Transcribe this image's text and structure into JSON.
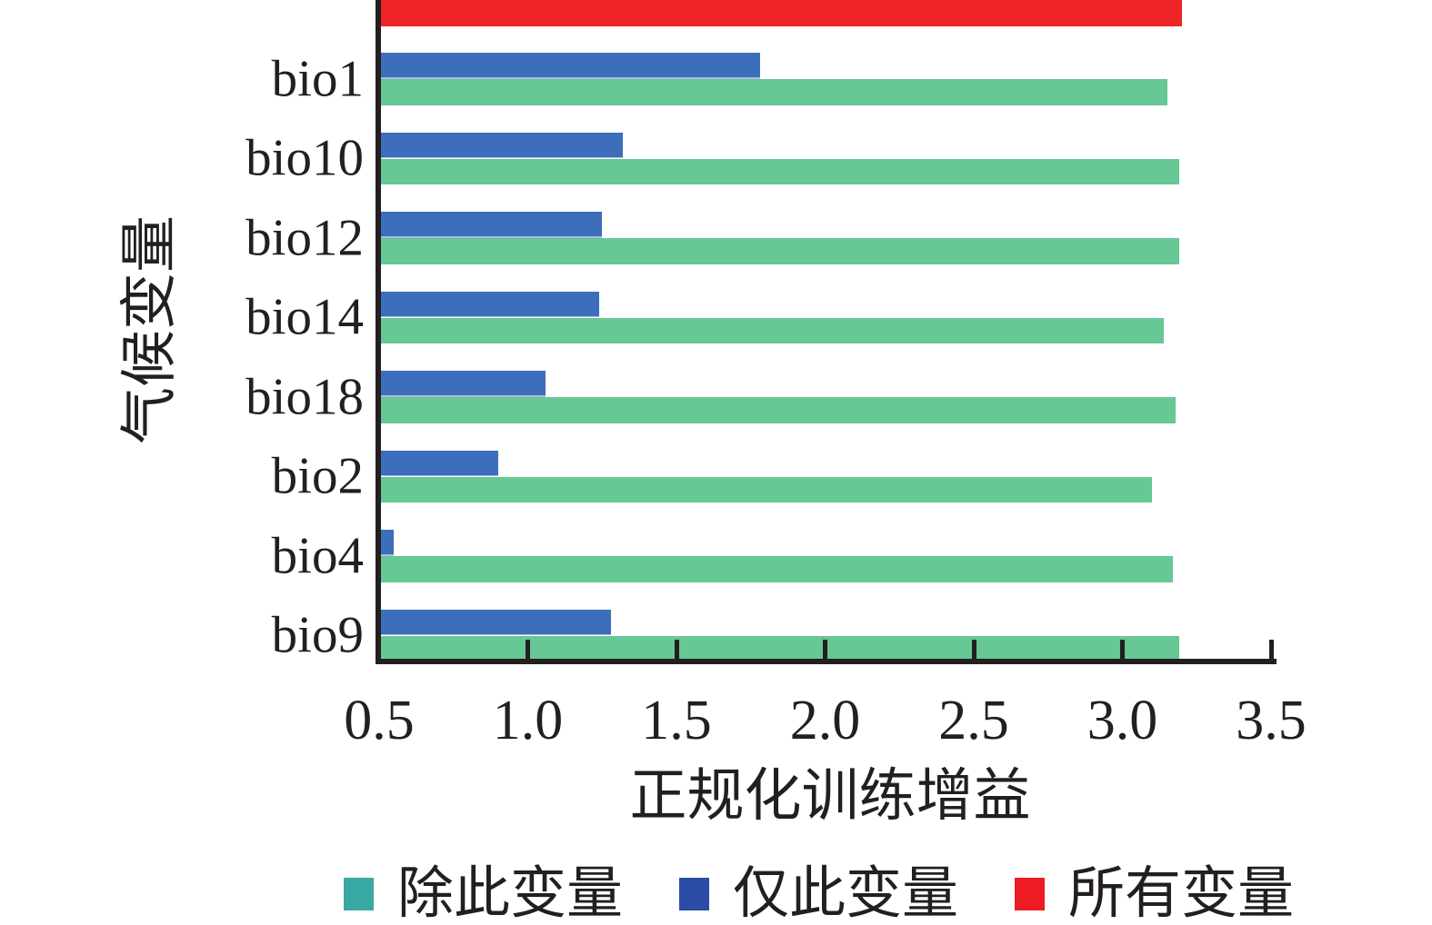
{
  "figure": {
    "background": "#ffffff",
    "axis_color": "#231f20",
    "text_color": "#231f20"
  },
  "chart_data": {
    "type": "bar",
    "orientation": "horizontal",
    "xlabel": "正规化训练增益",
    "ylabel": "气候变量",
    "xlim": [
      0.5,
      3.5
    ],
    "x_ticks": [
      0.5,
      1.0,
      1.5,
      2.0,
      2.5,
      3.0,
      3.5
    ],
    "x_tick_labels": [
      "0.5",
      "1.0",
      "1.5",
      "2.0",
      "2.5",
      "3.0",
      "3.5"
    ],
    "grid": false,
    "legend_position": "bottom",
    "categories": [
      "bio1",
      "bio10",
      "bio12",
      "bio14",
      "bio18",
      "bio2",
      "bio4",
      "bio9"
    ],
    "series": [
      {
        "name": "仅此变量",
        "role": "only-this-variable",
        "color": "#3C6EBC",
        "values": [
          1.78,
          1.32,
          1.25,
          1.24,
          1.06,
          0.9,
          0.55,
          1.28
        ]
      },
      {
        "name": "除此变量",
        "role": "without-this-variable",
        "color": "#67C795",
        "values": [
          3.15,
          3.19,
          3.19,
          3.14,
          3.18,
          3.1,
          3.17,
          3.19
        ]
      }
    ],
    "all_variables_bar": {
      "name": "所有变量",
      "color": "#EE2426",
      "value": 3.2
    },
    "legend": [
      {
        "label": "除此变量",
        "swatch_color": "#38A9A2"
      },
      {
        "label": "仅此变量",
        "swatch_color": "#2B4CA4"
      },
      {
        "label": "所有变量",
        "swatch_color": "#ED1C24"
      }
    ]
  }
}
